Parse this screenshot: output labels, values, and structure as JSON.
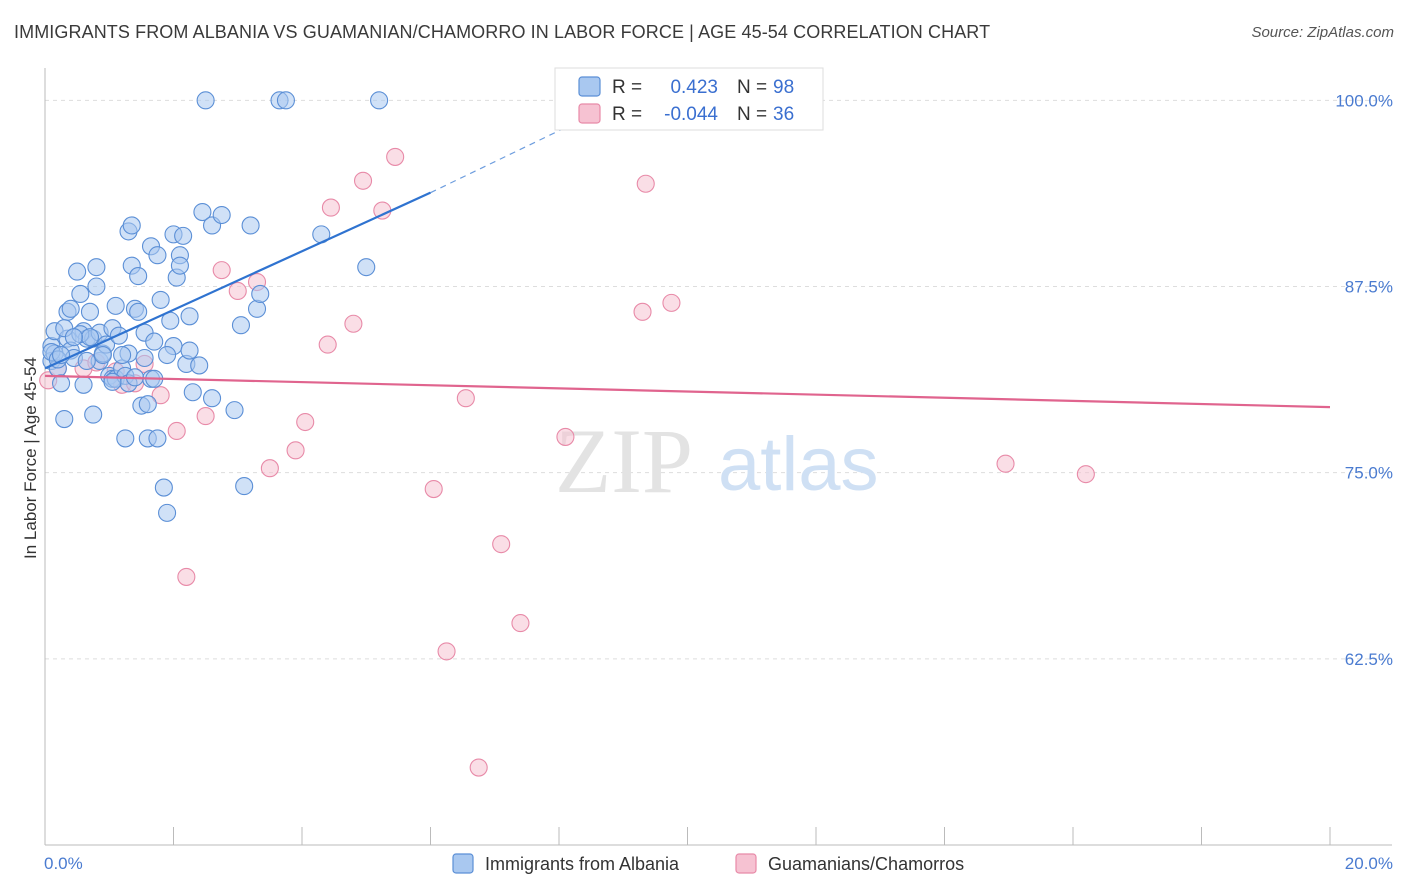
{
  "title": "IMMIGRANTS FROM ALBANIA VS GUAMANIAN/CHAMORRO IN LABOR FORCE | AGE 45-54 CORRELATION CHART",
  "source": "Source: ZipAtlas.com",
  "watermark": {
    "zip": "ZIP",
    "atlas": "atlas"
  },
  "colors": {
    "blue_fill": "#a9c8f0",
    "blue_stroke": "#5b8fd6",
    "blue_line": "#2f73d0",
    "pink_fill": "#f6c2d2",
    "pink_stroke": "#e88aa8",
    "pink_line": "#e0648e",
    "grid": "#dddddd",
    "tick_label": "#4a7bd0"
  },
  "legend": {
    "rows": [
      {
        "r_label": "R =",
        "r_value": "0.423",
        "n_label": "N =",
        "n_value": "98"
      },
      {
        "r_label": "R =",
        "r_value": "-0.044",
        "n_label": "N =",
        "n_value": "36"
      }
    ]
  },
  "chart_data": {
    "type": "scatter",
    "xlabel": "",
    "ylabel": "In Labor Force | Age 45-54",
    "xlim": [
      0,
      20
    ],
    "ylim": [
      50,
      101.5
    ],
    "x_tick_labels": [
      "0.0%",
      "20.0%"
    ],
    "y_ticks": [
      62.5,
      75.0,
      87.5,
      100.0
    ],
    "y_tick_labels": [
      "62.5%",
      "75.0%",
      "87.5%",
      "100.0%"
    ],
    "grid": true,
    "series": [
      {
        "name": "Immigrants from Albania",
        "color": "blue",
        "trend": {
          "x": [
            0,
            6.0
          ],
          "y": [
            82.0,
            93.8
          ],
          "dashed_to": {
            "x": 8.5,
            "y": 99.0
          }
        },
        "points": [
          [
            0.1,
            83.5
          ],
          [
            0.1,
            82.5
          ],
          [
            0.15,
            84.5
          ],
          [
            0.15,
            83.0
          ],
          [
            0.2,
            82.0
          ],
          [
            0.25,
            81.0
          ],
          [
            0.3,
            78.6
          ],
          [
            0.35,
            85.8
          ],
          [
            0.35,
            84.0
          ],
          [
            0.4,
            86.0
          ],
          [
            0.4,
            83.2
          ],
          [
            0.45,
            82.7
          ],
          [
            0.5,
            88.5
          ],
          [
            0.55,
            87.0
          ],
          [
            0.6,
            84.5
          ],
          [
            0.6,
            80.9
          ],
          [
            0.65,
            84.0
          ],
          [
            0.7,
            85.8
          ],
          [
            0.75,
            84.0
          ],
          [
            0.75,
            78.9
          ],
          [
            0.8,
            88.8
          ],
          [
            0.8,
            87.5
          ],
          [
            0.85,
            84.4
          ],
          [
            0.85,
            82.5
          ],
          [
            0.9,
            83.0
          ],
          [
            0.95,
            83.6
          ],
          [
            1.0,
            81.5
          ],
          [
            1.05,
            81.3
          ],
          [
            1.05,
            84.7
          ],
          [
            1.1,
            86.2
          ],
          [
            1.1,
            81.3
          ],
          [
            1.15,
            84.2
          ],
          [
            1.2,
            82.0
          ],
          [
            1.25,
            81.5
          ],
          [
            1.25,
            77.3
          ],
          [
            1.3,
            83.0
          ],
          [
            1.3,
            81.0
          ],
          [
            1.3,
            91.2
          ],
          [
            1.35,
            91.6
          ],
          [
            1.35,
            88.9
          ],
          [
            1.4,
            86.0
          ],
          [
            1.45,
            88.2
          ],
          [
            1.45,
            85.8
          ],
          [
            1.5,
            79.5
          ],
          [
            1.55,
            84.4
          ],
          [
            1.55,
            82.7
          ],
          [
            1.6,
            79.6
          ],
          [
            1.6,
            77.3
          ],
          [
            1.65,
            81.3
          ],
          [
            1.65,
            90.2
          ],
          [
            1.7,
            83.8
          ],
          [
            1.7,
            81.3
          ],
          [
            1.75,
            77.3
          ],
          [
            1.75,
            89.6
          ],
          [
            1.8,
            86.6
          ],
          [
            1.85,
            74.0
          ],
          [
            1.9,
            72.3
          ],
          [
            1.95,
            85.2
          ],
          [
            2.0,
            91.0
          ],
          [
            2.0,
            83.5
          ],
          [
            2.05,
            88.1
          ],
          [
            2.1,
            89.6
          ],
          [
            2.1,
            88.9
          ],
          [
            2.15,
            90.9
          ],
          [
            2.2,
            82.3
          ],
          [
            2.25,
            85.5
          ],
          [
            2.25,
            83.2
          ],
          [
            2.3,
            80.4
          ],
          [
            2.4,
            82.2
          ],
          [
            2.45,
            92.5
          ],
          [
            2.5,
            100.0
          ],
          [
            2.6,
            91.6
          ],
          [
            2.6,
            80.0
          ],
          [
            2.75,
            92.3
          ],
          [
            2.95,
            79.2
          ],
          [
            3.05,
            84.9
          ],
          [
            3.1,
            74.1
          ],
          [
            3.2,
            91.6
          ],
          [
            3.3,
            86.0
          ],
          [
            3.35,
            87.0
          ],
          [
            3.65,
            100.0
          ],
          [
            3.75,
            100.0
          ],
          [
            4.3,
            91.0
          ],
          [
            5.0,
            88.8
          ],
          [
            5.2,
            100.0
          ],
          [
            0.1,
            83.1
          ],
          [
            0.2,
            82.6
          ],
          [
            0.9,
            82.9
          ],
          [
            1.05,
            81.1
          ],
          [
            1.2,
            82.9
          ],
          [
            0.55,
            84.3
          ],
          [
            0.7,
            84.1
          ],
          [
            1.4,
            81.4
          ],
          [
            1.9,
            82.9
          ],
          [
            0.3,
            84.7
          ],
          [
            0.45,
            84.1
          ],
          [
            0.65,
            82.5
          ],
          [
            0.25,
            82.9
          ]
        ]
      },
      {
        "name": "Guamanians/Chamorros",
        "color": "pink",
        "trend": {
          "x": [
            0,
            20
          ],
          "y": [
            81.5,
            79.4
          ]
        },
        "points": [
          [
            0.05,
            81.2
          ],
          [
            0.2,
            82.0
          ],
          [
            0.6,
            82.0
          ],
          [
            0.8,
            82.4
          ],
          [
            1.1,
            81.8
          ],
          [
            1.2,
            80.9
          ],
          [
            1.4,
            81.0
          ],
          [
            1.55,
            82.3
          ],
          [
            1.8,
            80.2
          ],
          [
            2.05,
            77.8
          ],
          [
            2.2,
            68.0
          ],
          [
            2.5,
            78.8
          ],
          [
            2.75,
            88.6
          ],
          [
            3.0,
            87.2
          ],
          [
            3.3,
            87.8
          ],
          [
            3.5,
            75.3
          ],
          [
            3.9,
            76.5
          ],
          [
            4.05,
            78.4
          ],
          [
            4.4,
            83.6
          ],
          [
            4.45,
            92.8
          ],
          [
            4.8,
            85.0
          ],
          [
            4.95,
            94.6
          ],
          [
            5.25,
            92.6
          ],
          [
            5.45,
            96.2
          ],
          [
            6.05,
            73.9
          ],
          [
            6.25,
            63.0
          ],
          [
            6.55,
            80.0
          ],
          [
            6.75,
            55.2
          ],
          [
            7.1,
            70.2
          ],
          [
            7.4,
            64.9
          ],
          [
            8.1,
            77.4
          ],
          [
            9.3,
            85.8
          ],
          [
            9.35,
            94.4
          ],
          [
            9.75,
            86.4
          ],
          [
            14.95,
            75.6
          ],
          [
            16.2,
            74.9
          ]
        ]
      }
    ]
  },
  "bottom_legend": [
    {
      "label": "Immigrants from Albania",
      "color": "blue"
    },
    {
      "label": "Guamanians/Chamorros",
      "color": "pink"
    }
  ]
}
